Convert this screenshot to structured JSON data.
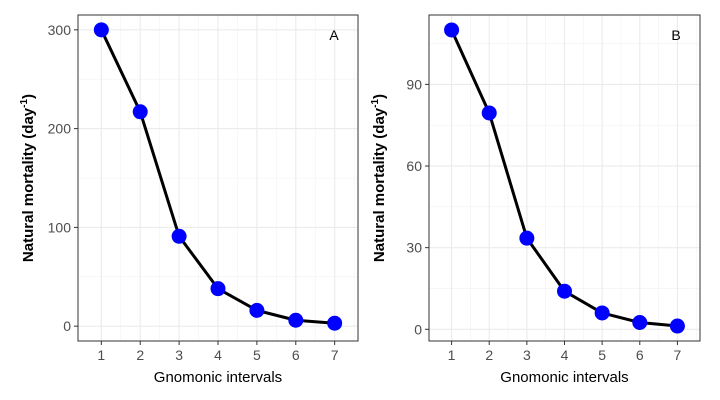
{
  "figure": {
    "panels": [
      {
        "tag": "A",
        "xlabel": "Gnomonic intervals",
        "ylabel": "Natural mortality (day",
        "ylabel_sup": "-1",
        "ylabel_close": ")"
      },
      {
        "tag": "B",
        "xlabel": "Gnomonic intervals",
        "ylabel": "Natural mortality (day",
        "ylabel_sup": "-1",
        "ylabel_close": ")"
      }
    ]
  },
  "chart_data": [
    {
      "type": "line",
      "panel_tag": "A",
      "title": "",
      "xlabel": "Gnomonic intervals",
      "ylabel": "Natural mortality (day-1)",
      "x": [
        1,
        2,
        3,
        4,
        5,
        6,
        7
      ],
      "series": [
        {
          "values": [
            300,
            217,
            91,
            38,
            16,
            6,
            3
          ]
        }
      ],
      "xlim": [
        0.4,
        7.6
      ],
      "ylim": [
        -15,
        315
      ],
      "yticks": [
        0,
        100,
        200,
        300
      ],
      "xticks": [
        1,
        2,
        3,
        4,
        5,
        6,
        7
      ],
      "grid": true,
      "line_color": "#000000",
      "marker_color": "#0000ff"
    },
    {
      "type": "line",
      "panel_tag": "B",
      "title": "",
      "xlabel": "Gnomonic intervals",
      "ylabel": "Natural mortality (day-1)",
      "x": [
        1,
        2,
        3,
        4,
        5,
        6,
        7
      ],
      "series": [
        {
          "values": [
            110,
            79.5,
            33.5,
            14,
            6,
            2.5,
            1.2
          ]
        }
      ],
      "xlim": [
        0.4,
        7.6
      ],
      "ylim": [
        -4.3,
        115.5
      ],
      "yticks": [
        0,
        30,
        60,
        90
      ],
      "xticks": [
        1,
        2,
        3,
        4,
        5,
        6,
        7
      ],
      "grid": true,
      "line_color": "#000000",
      "marker_color": "#0000ff"
    }
  ]
}
